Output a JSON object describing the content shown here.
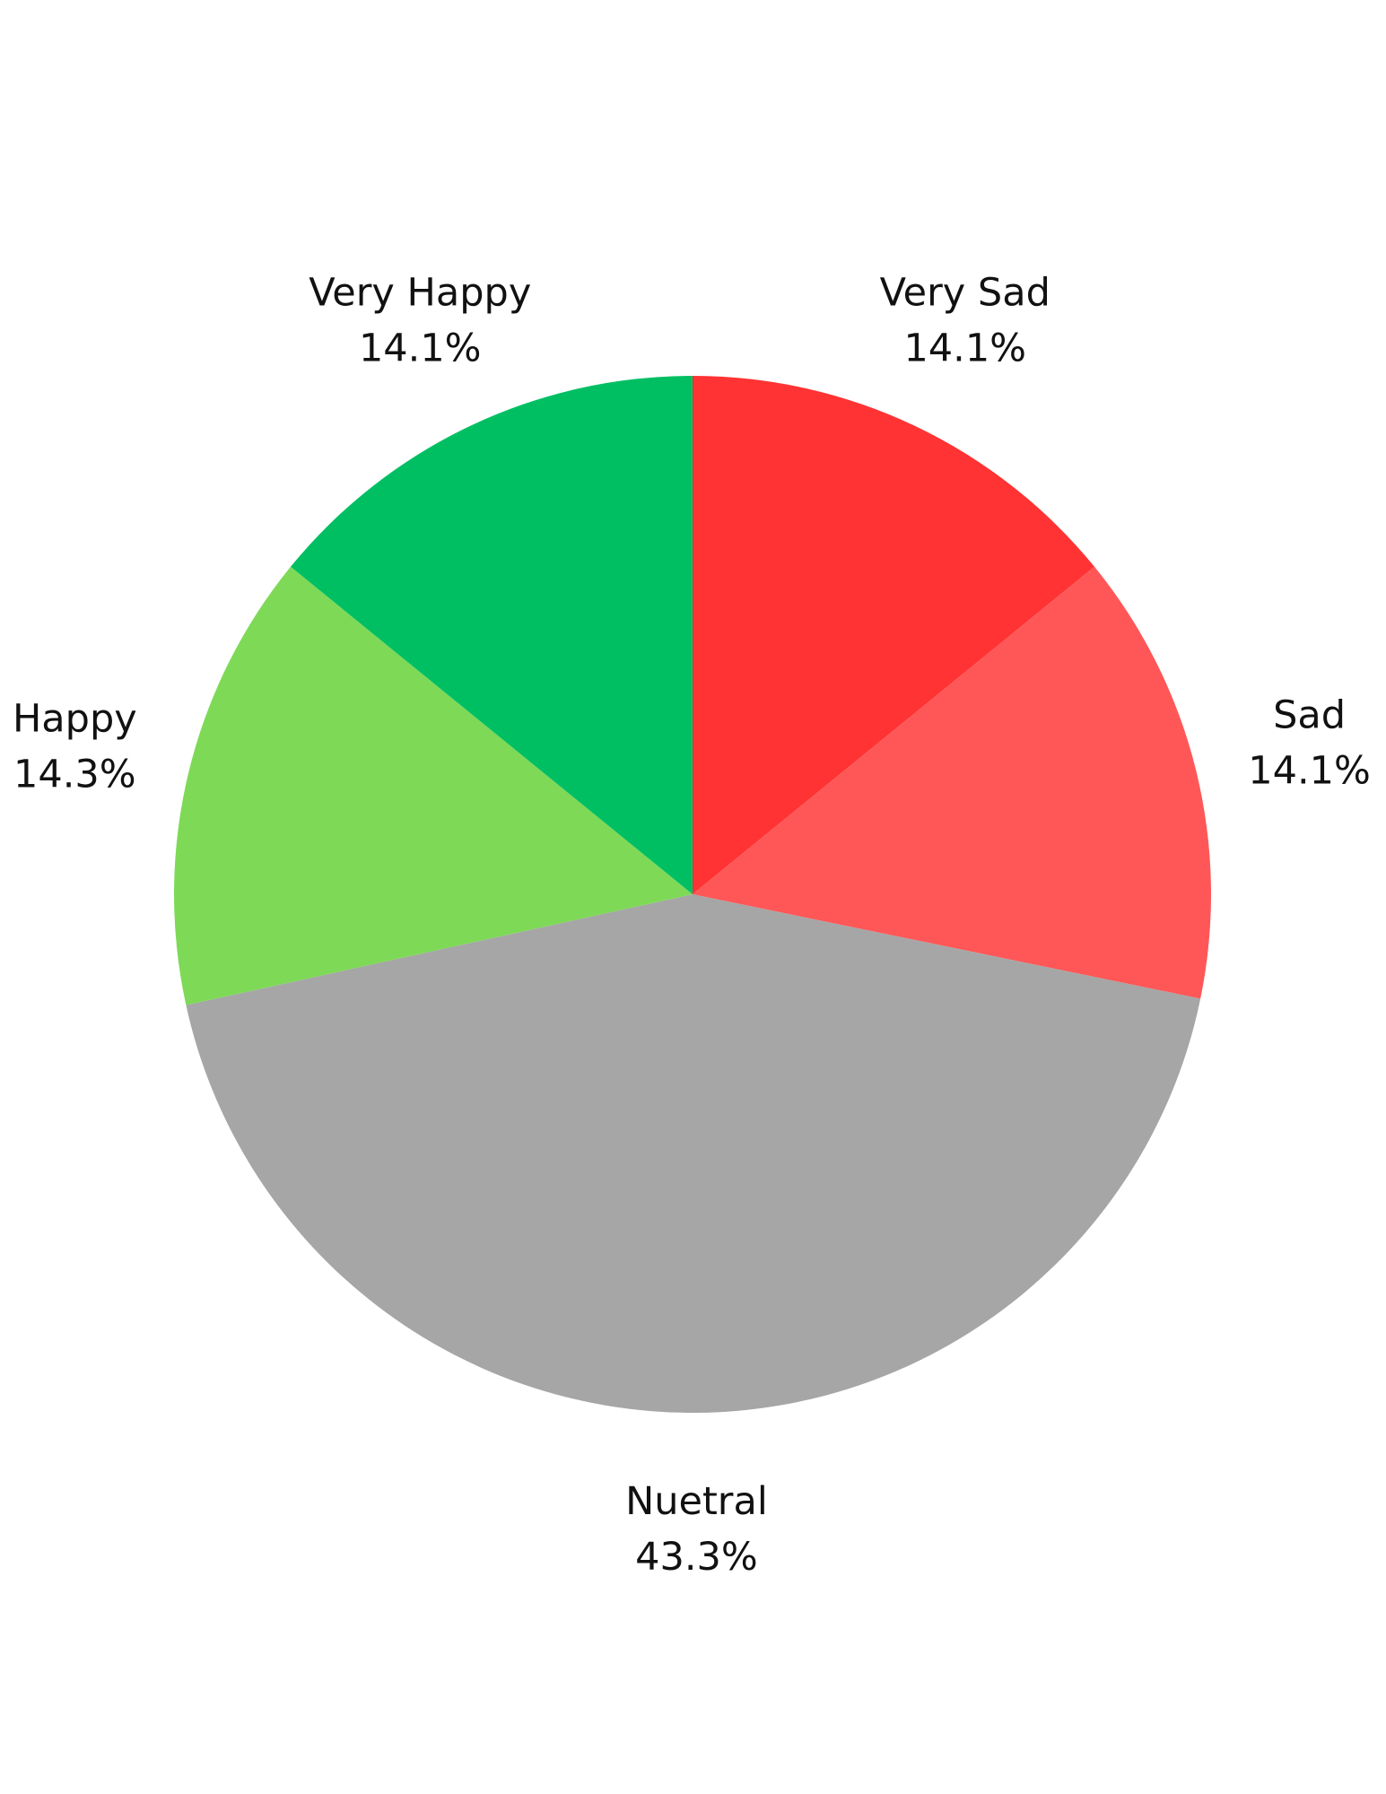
{
  "chart_data": {
    "type": "pie",
    "title": "",
    "start_angle_deg": 0,
    "direction": "clockwise",
    "slices": [
      {
        "name": "Very Sad",
        "value": 14.1,
        "label": "14.1%",
        "color": "#FF3333"
      },
      {
        "name": "Sad",
        "value": 14.1,
        "label": "14.1%",
        "color": "#FF5757"
      },
      {
        "name": "Nuetral",
        "value": 43.3,
        "label": "43.3%",
        "color": "#A6A6A6"
      },
      {
        "name": "Happy",
        "value": 14.3,
        "label": "14.3%",
        "color": "#7ED957"
      },
      {
        "name": "Very Happy",
        "value": 14.1,
        "label": "14.1%",
        "color": "#00BF63"
      }
    ],
    "legend": "none"
  }
}
